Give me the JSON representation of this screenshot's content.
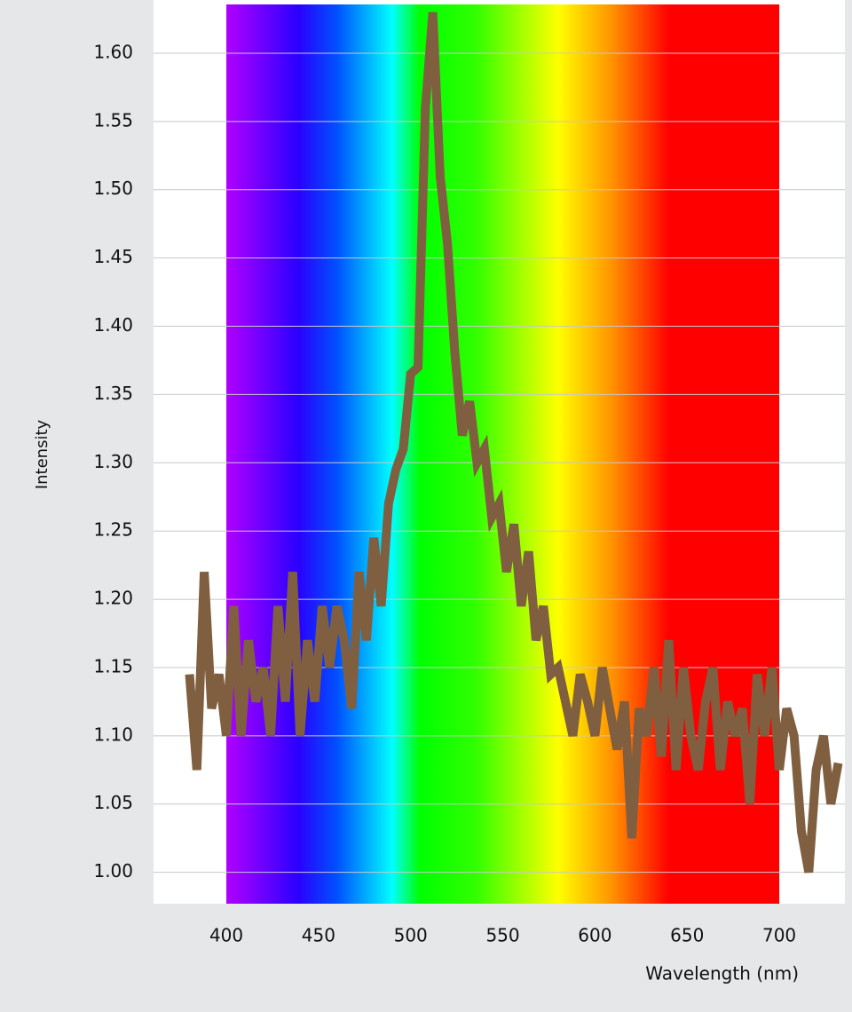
{
  "chart_data": {
    "type": "line",
    "x_label": "Wavelength (nm)",
    "y_label": "Intensity",
    "x": [
      380,
      384,
      388,
      392,
      396,
      400,
      404,
      408,
      412,
      416,
      420,
      424,
      428,
      432,
      436,
      440,
      444,
      448,
      452,
      456,
      460,
      464,
      468,
      472,
      476,
      480,
      484,
      488,
      492,
      496,
      500,
      504,
      508,
      512,
      516,
      520,
      524,
      528,
      532,
      536,
      540,
      544,
      548,
      552,
      556,
      560,
      564,
      568,
      572,
      576,
      580,
      584,
      588,
      592,
      596,
      600,
      604,
      608,
      612,
      616,
      620,
      624,
      628,
      632,
      636,
      640,
      644,
      648,
      652,
      656,
      660,
      664,
      668,
      672,
      676,
      680,
      684,
      688,
      692,
      696,
      700,
      704,
      708,
      712,
      716,
      720,
      724,
      728,
      732
    ],
    "series": [
      {
        "name": "Intensity",
        "color": "#7f5f40",
        "values": [
          1.145,
          1.075,
          1.22,
          1.12,
          1.145,
          1.1,
          1.195,
          1.1,
          1.17,
          1.125,
          1.15,
          1.1,
          1.195,
          1.125,
          1.22,
          1.1,
          1.17,
          1.125,
          1.195,
          1.15,
          1.195,
          1.17,
          1.12,
          1.22,
          1.17,
          1.245,
          1.195,
          1.27,
          1.295,
          1.31,
          1.365,
          1.37,
          1.56,
          1.63,
          1.51,
          1.46,
          1.38,
          1.32,
          1.345,
          1.3,
          1.31,
          1.26,
          1.27,
          1.22,
          1.255,
          1.195,
          1.235,
          1.17,
          1.195,
          1.145,
          1.15,
          1.125,
          1.1,
          1.145,
          1.125,
          1.1,
          1.15,
          1.12,
          1.09,
          1.125,
          1.025,
          1.12,
          1.1,
          1.15,
          1.085,
          1.17,
          1.075,
          1.15,
          1.1,
          1.075,
          1.125,
          1.15,
          1.075,
          1.125,
          1.1,
          1.12,
          1.05,
          1.145,
          1.1,
          1.15,
          1.075,
          1.12,
          1.1,
          1.03,
          1.0,
          1.075,
          1.1,
          1.05,
          1.08
        ]
      }
    ],
    "xlim": [
      360.5,
      735.6
    ],
    "ylim": [
      0.977,
      1.639
    ],
    "xticks": [
      400,
      450,
      500,
      550,
      600,
      650,
      700
    ],
    "yticks": [
      {
        "value": 1.0,
        "label": "1.00"
      },
      {
        "value": 1.05,
        "label": "1.05"
      },
      {
        "value": 1.1,
        "label": "1.10"
      },
      {
        "value": 1.15,
        "label": "1.15"
      },
      {
        "value": 1.2,
        "label": "1.20"
      },
      {
        "value": 1.25,
        "label": "1.25"
      },
      {
        "value": 1.3,
        "label": "1.30"
      },
      {
        "value": 1.35,
        "label": "1.35"
      },
      {
        "value": 1.4,
        "label": "1.40"
      },
      {
        "value": 1.45,
        "label": "1.45"
      },
      {
        "value": 1.5,
        "label": "1.50"
      },
      {
        "value": 1.55,
        "label": "1.55"
      },
      {
        "value": 1.6,
        "label": "1.60"
      }
    ],
    "grid": true
  }
}
